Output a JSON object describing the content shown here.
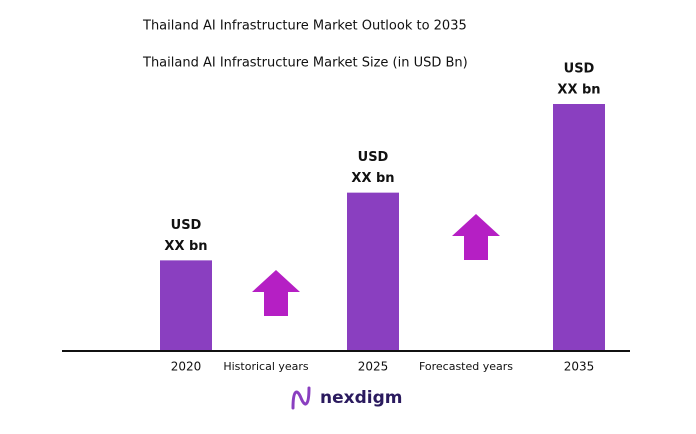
{
  "chart_data": {
    "type": "bar",
    "title": "Thailand AI Infrastructure Market Outlook to 2035",
    "subtitle": "Thailand AI Infrastructure Market Size (in USD Bn)",
    "categories": [
      "2020",
      "2025",
      "2035"
    ],
    "values": [
      90,
      158,
      247
    ],
    "bar_labels": [
      [
        "USD",
        "XX bn"
      ],
      [
        "USD",
        "XX bn"
      ],
      [
        "USD",
        "XX bn"
      ]
    ],
    "period_labels": [
      "Historical years",
      "Forecasted years"
    ],
    "color": "#8a3fc0",
    "arrow_color": "#b51fc4",
    "logo": "nexdigm"
  }
}
